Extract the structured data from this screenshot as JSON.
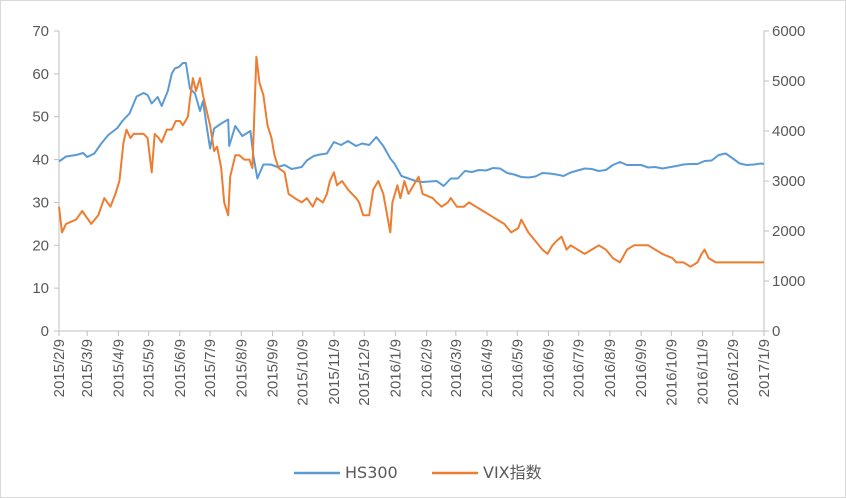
{
  "chart_data": {
    "type": "line",
    "title": "",
    "xlabel": "",
    "ylabel_left": "",
    "ylabel_right": "",
    "grid": false,
    "legend_position": "bottom",
    "x_range": [
      "2015-02-09",
      "2017-01-09"
    ],
    "x_tick_labels": [
      "2015/2/9",
      "2015/3/9",
      "2015/4/9",
      "2015/5/9",
      "2015/6/9",
      "2015/7/9",
      "2015/8/9",
      "2015/9/9",
      "2015/10/9",
      "2015/11/9",
      "2015/12/9",
      "2016/1/9",
      "2016/2/9",
      "2016/3/9",
      "2016/4/9",
      "2016/5/9",
      "2016/6/9",
      "2016/7/9",
      "2016/8/9",
      "2016/9/9",
      "2016/10/9",
      "2016/11/9",
      "2016/12/9",
      "2017/1/9"
    ],
    "y_left": {
      "min": 0,
      "max": 70,
      "ticks": [
        0,
        10,
        20,
        30,
        40,
        50,
        60,
        70
      ]
    },
    "y_right": {
      "min": 0,
      "max": 6000,
      "ticks": [
        0,
        1000,
        2000,
        3000,
        4000,
        5000,
        6000
      ]
    },
    "series": [
      {
        "name": "HS300",
        "axis": "right",
        "color": "#5b9bd5",
        "points": [
          [
            "2015-02-09",
            3390
          ],
          [
            "2015-02-16",
            3490
          ],
          [
            "2015-02-26",
            3520
          ],
          [
            "2015-03-05",
            3560
          ],
          [
            "2015-03-09",
            3480
          ],
          [
            "2015-03-16",
            3550
          ],
          [
            "2015-03-23",
            3750
          ],
          [
            "2015-03-30",
            3920
          ],
          [
            "2015-04-08",
            4060
          ],
          [
            "2015-04-13",
            4200
          ],
          [
            "2015-04-20",
            4350
          ],
          [
            "2015-04-27",
            4690
          ],
          [
            "2015-05-04",
            4760
          ],
          [
            "2015-05-08",
            4720
          ],
          [
            "2015-05-12",
            4550
          ],
          [
            "2015-05-18",
            4680
          ],
          [
            "2015-05-22",
            4500
          ],
          [
            "2015-05-28",
            4800
          ],
          [
            "2015-06-01",
            5150
          ],
          [
            "2015-06-04",
            5250
          ],
          [
            "2015-06-08",
            5280
          ],
          [
            "2015-06-12",
            5360
          ],
          [
            "2015-06-15",
            5360
          ],
          [
            "2015-06-19",
            4850
          ],
          [
            "2015-06-24",
            4750
          ],
          [
            "2015-06-29",
            4400
          ],
          [
            "2015-07-02",
            4600
          ],
          [
            "2015-07-06",
            4050
          ],
          [
            "2015-07-09",
            3650
          ],
          [
            "2015-07-13",
            4050
          ],
          [
            "2015-07-20",
            4150
          ],
          [
            "2015-07-27",
            4230
          ],
          [
            "2015-07-28",
            3700
          ],
          [
            "2015-08-03",
            4100
          ],
          [
            "2015-08-10",
            3900
          ],
          [
            "2015-08-18",
            4000
          ],
          [
            "2015-08-21",
            3500
          ],
          [
            "2015-08-25",
            3050
          ],
          [
            "2015-08-31",
            3330
          ],
          [
            "2015-09-07",
            3330
          ],
          [
            "2015-09-14",
            3280
          ],
          [
            "2015-09-21",
            3320
          ],
          [
            "2015-09-28",
            3240
          ],
          [
            "2015-10-08",
            3280
          ],
          [
            "2015-10-13",
            3410
          ],
          [
            "2015-10-20",
            3500
          ],
          [
            "2015-10-26",
            3530
          ],
          [
            "2015-11-02",
            3550
          ],
          [
            "2015-11-09",
            3780
          ],
          [
            "2015-11-16",
            3720
          ],
          [
            "2015-11-23",
            3800
          ],
          [
            "2015-12-01",
            3700
          ],
          [
            "2015-12-07",
            3750
          ],
          [
            "2015-12-14",
            3720
          ],
          [
            "2015-12-21",
            3880
          ],
          [
            "2015-12-28",
            3700
          ],
          [
            "2016-01-04",
            3450
          ],
          [
            "2016-01-08",
            3350
          ],
          [
            "2016-01-15",
            3100
          ],
          [
            "2016-01-22",
            3050
          ],
          [
            "2016-01-29",
            3000
          ],
          [
            "2016-02-05",
            2980
          ],
          [
            "2016-02-19",
            3000
          ],
          [
            "2016-02-26",
            2900
          ],
          [
            "2016-03-04",
            3050
          ],
          [
            "2016-03-11",
            3050
          ],
          [
            "2016-03-18",
            3200
          ],
          [
            "2016-03-25",
            3180
          ],
          [
            "2016-04-01",
            3220
          ],
          [
            "2016-04-08",
            3210
          ],
          [
            "2016-04-15",
            3260
          ],
          [
            "2016-04-22",
            3250
          ],
          [
            "2016-04-29",
            3160
          ],
          [
            "2016-05-06",
            3130
          ],
          [
            "2016-05-13",
            3080
          ],
          [
            "2016-05-20",
            3070
          ],
          [
            "2016-05-27",
            3090
          ],
          [
            "2016-06-03",
            3160
          ],
          [
            "2016-06-10",
            3150
          ],
          [
            "2016-06-17",
            3130
          ],
          [
            "2016-06-24",
            3100
          ],
          [
            "2016-07-01",
            3170
          ],
          [
            "2016-07-08",
            3210
          ],
          [
            "2016-07-15",
            3250
          ],
          [
            "2016-07-22",
            3240
          ],
          [
            "2016-07-29",
            3200
          ],
          [
            "2016-08-05",
            3220
          ],
          [
            "2016-08-12",
            3320
          ],
          [
            "2016-08-19",
            3380
          ],
          [
            "2016-08-26",
            3320
          ],
          [
            "2016-09-02",
            3320
          ],
          [
            "2016-09-09",
            3320
          ],
          [
            "2016-09-16",
            3270
          ],
          [
            "2016-09-23",
            3280
          ],
          [
            "2016-09-30",
            3250
          ],
          [
            "2016-10-14",
            3300
          ],
          [
            "2016-10-21",
            3330
          ],
          [
            "2016-10-28",
            3340
          ],
          [
            "2016-11-04",
            3340
          ],
          [
            "2016-11-11",
            3400
          ],
          [
            "2016-11-18",
            3410
          ],
          [
            "2016-11-25",
            3520
          ],
          [
            "2016-12-02",
            3550
          ],
          [
            "2016-12-09",
            3450
          ],
          [
            "2016-12-16",
            3350
          ],
          [
            "2016-12-23",
            3320
          ],
          [
            "2016-12-30",
            3330
          ],
          [
            "2017-01-06",
            3350
          ],
          [
            "2017-01-09",
            3340
          ]
        ]
      },
      {
        "name": "VIX指数",
        "axis": "left",
        "color": "#ed7d31",
        "points": [
          [
            "2015-02-09",
            29
          ],
          [
            "2015-02-12",
            23
          ],
          [
            "2015-02-16",
            25
          ],
          [
            "2015-02-26",
            26
          ],
          [
            "2015-03-04",
            28
          ],
          [
            "2015-03-10",
            26
          ],
          [
            "2015-03-13",
            25
          ],
          [
            "2015-03-20",
            27
          ],
          [
            "2015-03-26",
            31
          ],
          [
            "2015-04-01",
            29
          ],
          [
            "2015-04-06",
            32
          ],
          [
            "2015-04-10",
            35
          ],
          [
            "2015-04-14",
            44
          ],
          [
            "2015-04-17",
            47
          ],
          [
            "2015-04-21",
            45
          ],
          [
            "2015-04-24",
            46
          ],
          [
            "2015-04-28",
            46
          ],
          [
            "2015-05-04",
            46
          ],
          [
            "2015-05-08",
            45
          ],
          [
            "2015-05-12",
            37
          ],
          [
            "2015-05-15",
            46
          ],
          [
            "2015-05-19",
            45
          ],
          [
            "2015-05-22",
            44
          ],
          [
            "2015-05-27",
            47
          ],
          [
            "2015-06-01",
            47
          ],
          [
            "2015-06-05",
            49
          ],
          [
            "2015-06-09",
            49
          ],
          [
            "2015-06-12",
            48
          ],
          [
            "2015-06-17",
            50
          ],
          [
            "2015-06-19",
            54
          ],
          [
            "2015-06-22",
            59
          ],
          [
            "2015-06-25",
            56
          ],
          [
            "2015-06-29",
            59
          ],
          [
            "2015-07-02",
            55
          ],
          [
            "2015-07-06",
            51
          ],
          [
            "2015-07-09",
            48
          ],
          [
            "2015-07-13",
            42
          ],
          [
            "2015-07-16",
            43
          ],
          [
            "2015-07-20",
            38
          ],
          [
            "2015-07-23",
            30
          ],
          [
            "2015-07-27",
            27
          ],
          [
            "2015-07-29",
            36
          ],
          [
            "2015-08-03",
            41
          ],
          [
            "2015-08-07",
            41
          ],
          [
            "2015-08-12",
            40
          ],
          [
            "2015-08-17",
            40
          ],
          [
            "2015-08-20",
            38
          ],
          [
            "2015-08-24",
            64
          ],
          [
            "2015-08-27",
            58
          ],
          [
            "2015-08-31",
            55
          ],
          [
            "2015-09-04",
            48
          ],
          [
            "2015-09-08",
            45
          ],
          [
            "2015-09-11",
            41
          ],
          [
            "2015-09-15",
            38
          ],
          [
            "2015-09-21",
            37
          ],
          [
            "2015-09-25",
            32
          ],
          [
            "2015-10-01",
            31
          ],
          [
            "2015-10-08",
            30
          ],
          [
            "2015-10-13",
            31
          ],
          [
            "2015-10-19",
            29
          ],
          [
            "2015-10-23",
            31
          ],
          [
            "2015-10-29",
            30
          ],
          [
            "2015-11-02",
            32
          ],
          [
            "2015-11-05",
            35
          ],
          [
            "2015-11-09",
            37
          ],
          [
            "2015-11-12",
            34
          ],
          [
            "2015-11-17",
            35
          ],
          [
            "2015-11-23",
            33
          ],
          [
            "2015-11-27",
            32
          ],
          [
            "2015-12-01",
            31
          ],
          [
            "2015-12-04",
            30
          ],
          [
            "2015-12-08",
            27
          ],
          [
            "2015-12-14",
            27
          ],
          [
            "2015-12-18",
            33
          ],
          [
            "2015-12-23",
            35
          ],
          [
            "2015-12-28",
            32
          ],
          [
            "2016-01-04",
            23
          ],
          [
            "2016-01-06",
            30
          ],
          [
            "2016-01-11",
            34
          ],
          [
            "2016-01-14",
            31
          ],
          [
            "2016-01-18",
            35
          ],
          [
            "2016-01-22",
            32
          ],
          [
            "2016-01-27",
            34
          ],
          [
            "2016-02-01",
            36
          ],
          [
            "2016-02-05",
            32
          ],
          [
            "2016-02-15",
            31
          ],
          [
            "2016-02-19",
            30
          ],
          [
            "2016-02-24",
            29
          ],
          [
            "2016-03-01",
            30
          ],
          [
            "2016-03-04",
            31
          ],
          [
            "2016-03-10",
            29
          ],
          [
            "2016-03-17",
            29
          ],
          [
            "2016-03-22",
            30
          ],
          [
            "2016-03-29",
            29
          ],
          [
            "2016-04-05",
            28
          ],
          [
            "2016-04-12",
            27
          ],
          [
            "2016-04-19",
            26
          ],
          [
            "2016-04-26",
            25
          ],
          [
            "2016-05-03",
            23
          ],
          [
            "2016-05-10",
            24
          ],
          [
            "2016-05-13",
            26
          ],
          [
            "2016-05-20",
            23
          ],
          [
            "2016-05-27",
            21
          ],
          [
            "2016-06-03",
            19
          ],
          [
            "2016-06-08",
            18
          ],
          [
            "2016-06-13",
            20
          ],
          [
            "2016-06-17",
            21
          ],
          [
            "2016-06-22",
            22
          ],
          [
            "2016-06-27",
            19
          ],
          [
            "2016-07-01",
            20
          ],
          [
            "2016-07-08",
            19
          ],
          [
            "2016-07-15",
            18
          ],
          [
            "2016-07-22",
            19
          ],
          [
            "2016-07-29",
            20
          ],
          [
            "2016-08-05",
            19
          ],
          [
            "2016-08-12",
            17
          ],
          [
            "2016-08-19",
            16
          ],
          [
            "2016-08-26",
            19
          ],
          [
            "2016-09-02",
            20
          ],
          [
            "2016-09-09",
            20
          ],
          [
            "2016-09-16",
            20
          ],
          [
            "2016-09-23",
            19
          ],
          [
            "2016-09-30",
            18
          ],
          [
            "2016-10-10",
            17
          ],
          [
            "2016-10-14",
            16
          ],
          [
            "2016-10-21",
            16
          ],
          [
            "2016-10-28",
            15
          ],
          [
            "2016-11-04",
            16
          ],
          [
            "2016-11-08",
            18
          ],
          [
            "2016-11-11",
            19
          ],
          [
            "2016-11-15",
            17
          ],
          [
            "2016-11-22",
            16
          ],
          [
            "2016-11-29",
            16
          ],
          [
            "2016-12-02",
            16
          ],
          [
            "2016-12-09",
            16
          ],
          [
            "2016-12-16",
            16
          ],
          [
            "2016-12-23",
            16
          ],
          [
            "2016-12-30",
            16
          ],
          [
            "2017-01-09",
            16
          ]
        ]
      }
    ]
  }
}
